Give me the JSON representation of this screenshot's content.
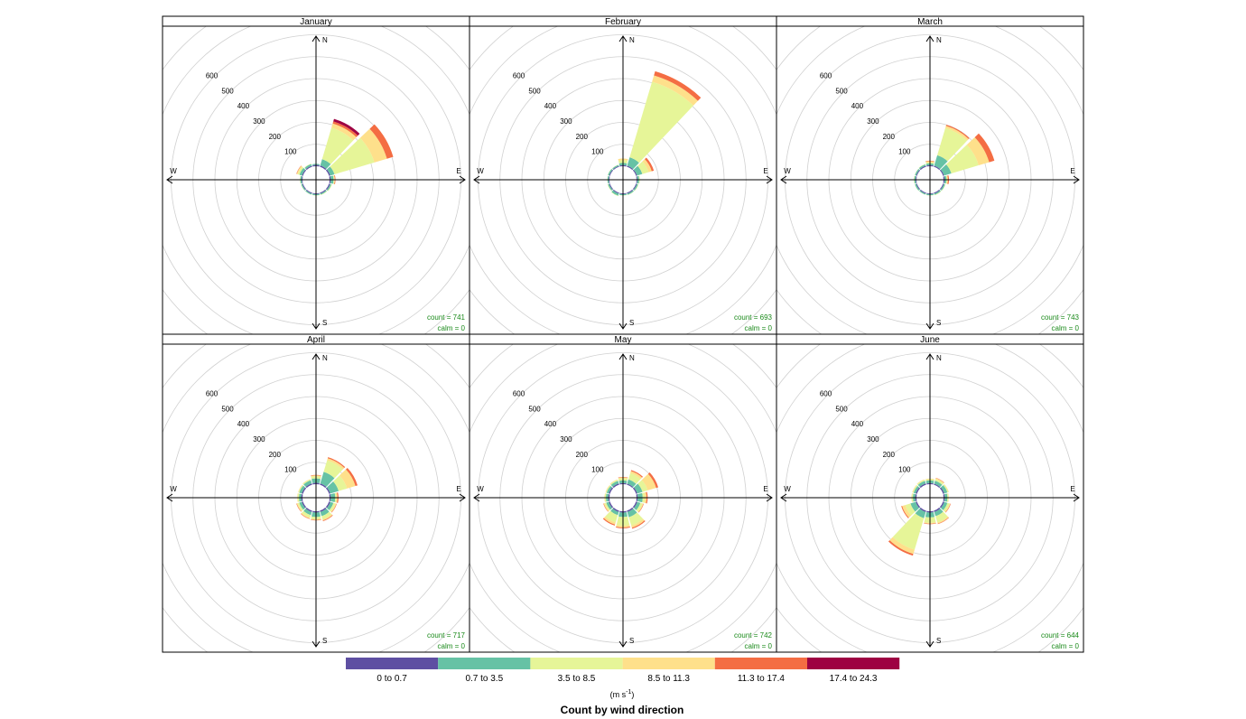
{
  "chart_data": {
    "type": "windrose",
    "subtitle": "Count by wind direction",
    "unit_text": "(m s",
    "unit_sup": "-1",
    "unit_close": ")",
    "radial_ticks": [
      "100",
      "200",
      "300",
      "400",
      "500",
      "600"
    ],
    "radial_tick_values": [
      100,
      200,
      300,
      400,
      500,
      600
    ],
    "compass": {
      "n": "N",
      "e": "E",
      "s": "S",
      "w": "W"
    },
    "bins": [
      {
        "label": "0 to 0.7",
        "color": "#5e4fa2"
      },
      {
        "label": "0.7 to 3.5",
        "color": "#66c2a5"
      },
      {
        "label": "3.5 to 8.5",
        "color": "#e6f598"
      },
      {
        "label": "8.5 to 11.3",
        "color": "#fee08b"
      },
      {
        "label": "11.3 to 17.4",
        "color": "#f46d43"
      },
      {
        "label": "17.4 to 24.3",
        "color": "#9e0142"
      }
    ],
    "directions_deg": [
      0,
      30,
      60,
      90,
      120,
      150,
      180,
      210,
      240,
      270,
      300,
      330
    ],
    "panels": [
      {
        "title": "January",
        "count_label": "count = 741",
        "calm_label": "calm = 0",
        "counts": [
          [
            6,
            5,
            0,
            0,
            0,
            0
          ],
          [
            6,
            30,
            150,
            20,
            10,
            12
          ],
          [
            6,
            20,
            190,
            60,
            30,
            0
          ],
          [
            6,
            12,
            4,
            2,
            3,
            0
          ],
          [
            5,
            6,
            3,
            0,
            0,
            0
          ],
          [
            4,
            5,
            2,
            0,
            0,
            0
          ],
          [
            4,
            5,
            1,
            0,
            0,
            0
          ],
          [
            4,
            5,
            1,
            0,
            0,
            0
          ],
          [
            4,
            5,
            1,
            0,
            0,
            0
          ],
          [
            4,
            6,
            2,
            0,
            0,
            0
          ],
          [
            5,
            12,
            8,
            5,
            2,
            0
          ],
          [
            5,
            8,
            2,
            0,
            0,
            0
          ]
        ]
      },
      {
        "title": "February",
        "count_label": "count = 693",
        "calm_label": "calm = 0",
        "counts": [
          [
            5,
            10,
            12,
            8,
            0,
            0
          ],
          [
            5,
            40,
            360,
            30,
            20,
            0
          ],
          [
            5,
            25,
            30,
            15,
            10,
            0
          ],
          [
            4,
            8,
            3,
            0,
            0,
            0
          ],
          [
            4,
            6,
            2,
            0,
            0,
            0
          ],
          [
            4,
            6,
            1,
            0,
            0,
            0
          ],
          [
            4,
            5,
            1,
            0,
            0,
            0
          ],
          [
            4,
            10,
            2,
            0,
            0,
            0
          ],
          [
            4,
            6,
            2,
            0,
            0,
            0
          ],
          [
            4,
            5,
            1,
            0,
            0,
            0
          ],
          [
            4,
            6,
            1,
            0,
            0,
            0
          ],
          [
            4,
            5,
            1,
            0,
            0,
            0
          ]
        ]
      },
      {
        "title": "March",
        "count_label": "count = 743",
        "calm_label": "calm = 0",
        "counts": [
          [
            5,
            8,
            4,
            6,
            2,
            0
          ],
          [
            5,
            50,
            130,
            10,
            5,
            0
          ],
          [
            5,
            35,
            130,
            50,
            25,
            0
          ],
          [
            5,
            8,
            4,
            3,
            5,
            0
          ],
          [
            4,
            6,
            2,
            0,
            0,
            0
          ],
          [
            4,
            6,
            2,
            0,
            0,
            0
          ],
          [
            4,
            5,
            1,
            0,
            0,
            0
          ],
          [
            4,
            5,
            1,
            0,
            0,
            0
          ],
          [
            4,
            6,
            1,
            0,
            0,
            0
          ],
          [
            4,
            6,
            2,
            0,
            0,
            0
          ],
          [
            4,
            6,
            1,
            0,
            0,
            0
          ],
          [
            5,
            6,
            2,
            0,
            0,
            0
          ]
        ]
      },
      {
        "title": "April",
        "count_label": "count = 717",
        "calm_label": "calm = 0",
        "counts": [
          [
            6,
            20,
            10,
            4,
            2,
            0
          ],
          [
            6,
            55,
            55,
            10,
            5,
            0
          ],
          [
            6,
            40,
            40,
            40,
            10,
            0
          ],
          [
            6,
            20,
            6,
            4,
            5,
            0
          ],
          [
            6,
            15,
            10,
            4,
            2,
            0
          ],
          [
            6,
            20,
            15,
            6,
            3,
            0
          ],
          [
            6,
            20,
            10,
            4,
            2,
            0
          ],
          [
            6,
            15,
            12,
            5,
            2,
            0
          ],
          [
            6,
            12,
            8,
            4,
            2,
            0
          ],
          [
            6,
            10,
            6,
            2,
            0,
            0
          ],
          [
            6,
            12,
            4,
            2,
            0,
            0
          ],
          [
            6,
            15,
            4,
            2,
            0,
            0
          ]
        ]
      },
      {
        "title": "May",
        "count_label": "count = 742",
        "calm_label": "calm = 0",
        "counts": [
          [
            5,
            12,
            10,
            4,
            2,
            0
          ],
          [
            5,
            20,
            30,
            10,
            5,
            0
          ],
          [
            6,
            25,
            25,
            40,
            10,
            0
          ],
          [
            6,
            22,
            10,
            8,
            5,
            0
          ],
          [
            6,
            15,
            10,
            4,
            2,
            0
          ],
          [
            6,
            25,
            40,
            10,
            5,
            0
          ],
          [
            6,
            20,
            40,
            8,
            4,
            0
          ],
          [
            6,
            15,
            35,
            10,
            5,
            0
          ],
          [
            6,
            12,
            8,
            4,
            2,
            0
          ],
          [
            6,
            10,
            5,
            2,
            0,
            0
          ],
          [
            6,
            10,
            4,
            2,
            0,
            0
          ],
          [
            6,
            12,
            5,
            2,
            0,
            0
          ]
        ]
      },
      {
        "title": "June",
        "count_label": "count = 644",
        "calm_label": "calm = 0",
        "counts": [
          [
            5,
            12,
            6,
            2,
            0,
            0
          ],
          [
            5,
            14,
            8,
            4,
            2,
            0
          ],
          [
            6,
            15,
            5,
            2,
            0,
            0
          ],
          [
            6,
            12,
            4,
            2,
            0,
            0
          ],
          [
            6,
            15,
            10,
            4,
            2,
            0
          ],
          [
            6,
            20,
            30,
            6,
            2,
            0
          ],
          [
            6,
            22,
            25,
            4,
            2,
            0
          ],
          [
            6,
            30,
            150,
            20,
            8,
            0
          ],
          [
            6,
            25,
            25,
            15,
            4,
            0
          ],
          [
            6,
            10,
            5,
            2,
            0,
            0
          ],
          [
            6,
            10,
            5,
            2,
            0,
            0
          ],
          [
            6,
            12,
            5,
            2,
            0,
            0
          ]
        ]
      }
    ]
  }
}
